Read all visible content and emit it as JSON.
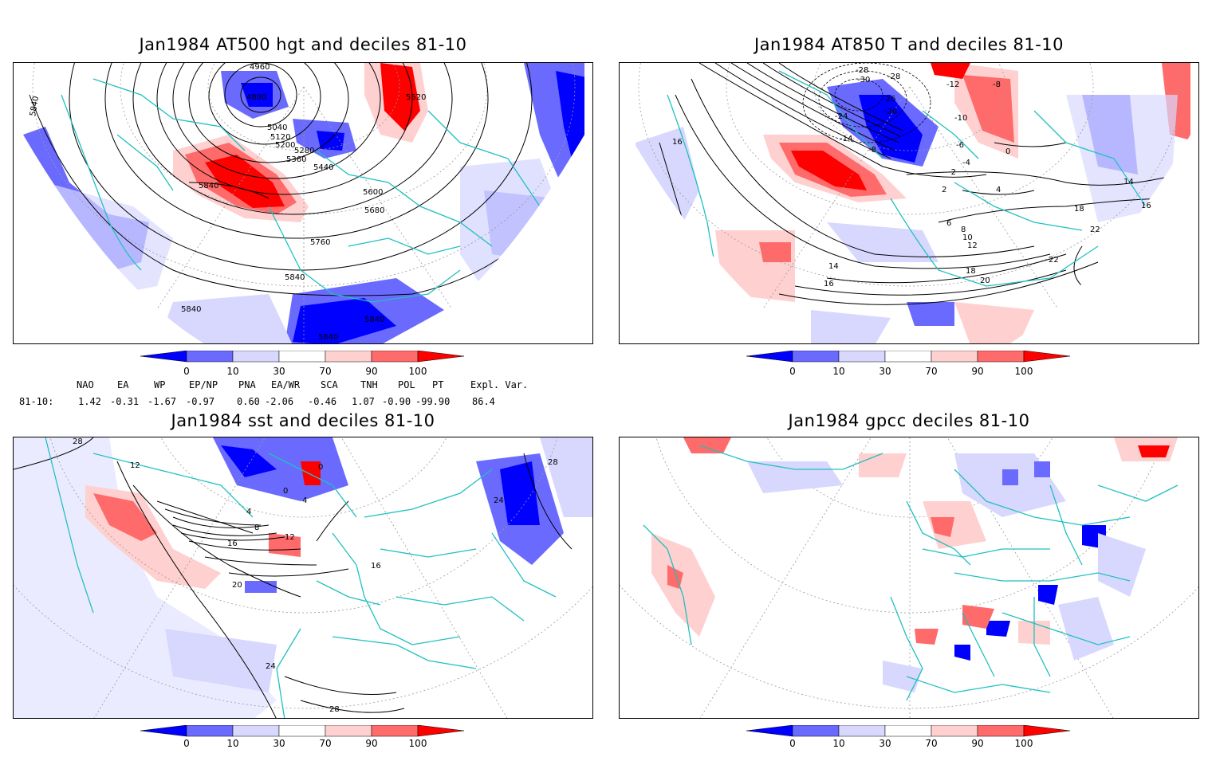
{
  "panels": [
    {
      "title": "Jan1984 AT500 hgt and deciles 81-10",
      "contour_labels": [
        "4960",
        "4880",
        "5040",
        "5120",
        "5200",
        "5280",
        "5360",
        "5440",
        "5520",
        "5600",
        "5680",
        "5760",
        "5840",
        "5840",
        "5840",
        "5840",
        "5840",
        "5840"
      ]
    },
    {
      "title": "Jan1984 AT850 T and deciles 81-10",
      "contour_labels": [
        "-28",
        "-30",
        "-28",
        "-26",
        "-26",
        "-24",
        "-14",
        "-12",
        "-10",
        "-8",
        "-8",
        "-6",
        "-4",
        "-2",
        "0",
        "2",
        "4",
        "6",
        "8",
        "10",
        "12",
        "14",
        "14",
        "16",
        "16",
        "16",
        "18",
        "18",
        "20",
        "22",
        "22"
      ]
    },
    {
      "title": "Jan1984 sst and deciles 81-10",
      "contour_labels": [
        "28",
        "12",
        "0",
        "0",
        "4",
        "4",
        "8",
        "12",
        "16",
        "16",
        "20",
        "24",
        "24",
        "28",
        "28"
      ]
    },
    {
      "title": "Jan1984 gpcc deciles 81-10",
      "contour_labels": []
    }
  ],
  "colorbar": {
    "labels": [
      "0",
      "10",
      "30",
      "70",
      "90",
      "100"
    ],
    "colors": [
      "#0000ff",
      "#6a6aff",
      "#d8d8ff",
      "#ffffff",
      "#ffd0d0",
      "#ff6a6a",
      "#ff0000"
    ]
  },
  "indices": {
    "headers": [
      "NAO",
      "EA",
      "WP",
      "EP/NP",
      "PNA",
      "EA/WR",
      "SCA",
      "TNH",
      "POL",
      "PT",
      "Expl. Var."
    ],
    "row_label": "81-10:",
    "values": [
      "1.42",
      "-0.31",
      "-1.67",
      "-0.97",
      "0.60",
      "-2.06",
      "-0.46",
      "1.07",
      "-0.90",
      "-99.90",
      "86.4"
    ]
  },
  "colors": {
    "coast": "#20c0c0",
    "contour": "#000000",
    "grid": "#888888"
  }
}
